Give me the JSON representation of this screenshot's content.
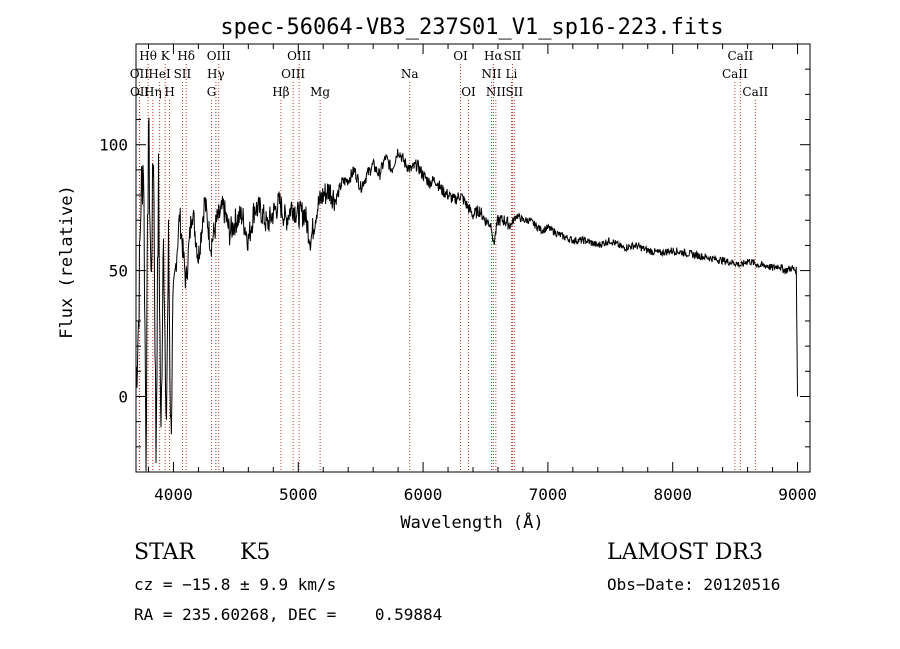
{
  "chart_data": {
    "type": "line",
    "title": "spec-56064-VB3_237S01_V1_sp16-223.fits",
    "xlabel": "Wavelength (Å)",
    "ylabel": "Flux (relative)",
    "xlim": [
      3700,
      9100
    ],
    "ylim": [
      -30,
      140
    ],
    "xticks": [
      4000,
      5000,
      6000,
      7000,
      8000,
      9000
    ],
    "yticks": [
      0,
      50,
      100
    ],
    "xtick_labels": [
      "4000",
      "5000",
      "6000",
      "7000",
      "8000",
      "9000"
    ],
    "ytick_labels": [
      "0",
      "50",
      "100"
    ],
    "series": [
      {
        "name": "flux",
        "x": [
          3700,
          3720,
          3740,
          3760,
          3780,
          3800,
          3820,
          3840,
          3860,
          3880,
          3900,
          3920,
          3940,
          3960,
          3980,
          4000,
          4050,
          4100,
          4150,
          4200,
          4250,
          4300,
          4350,
          4400,
          4450,
          4500,
          4550,
          4600,
          4650,
          4700,
          4750,
          4800,
          4850,
          4900,
          4950,
          5000,
          5050,
          5100,
          5150,
          5200,
          5250,
          5300,
          5350,
          5400,
          5450,
          5500,
          5550,
          5600,
          5650,
          5700,
          5750,
          5800,
          5850,
          5900,
          5950,
          6000,
          6050,
          6100,
          6150,
          6200,
          6250,
          6300,
          6350,
          6400,
          6450,
          6500,
          6550,
          6563,
          6600,
          6650,
          6700,
          6750,
          6800,
          6850,
          6900,
          6950,
          7000,
          7100,
          7200,
          7300,
          7400,
          7500,
          7600,
          7700,
          7800,
          7900,
          8000,
          8100,
          8200,
          8300,
          8400,
          8500,
          8550,
          8600,
          8650,
          8700,
          8750,
          8800,
          8850,
          8900,
          8950,
          8990,
          9000
        ],
        "y": [
          5,
          30,
          80,
          95,
          -20,
          110,
          45,
          100,
          -22,
          85,
          -20,
          75,
          -20,
          60,
          -15,
          40,
          72,
          45,
          75,
          55,
          78,
          60,
          70,
          75,
          65,
          70,
          72,
          62,
          75,
          74,
          68,
          73,
          77,
          70,
          76,
          72,
          73,
          62,
          75,
          80,
          82,
          78,
          85,
          86,
          90,
          83,
          88,
          92,
          88,
          95,
          90,
          98,
          93,
          90,
          92,
          88,
          85,
          86,
          82,
          80,
          78,
          80,
          76,
          72,
          74,
          70,
          68,
          60,
          70,
          70,
          68,
          72,
          70,
          70,
          68,
          66,
          67,
          64,
          62,
          62,
          60,
          62,
          59,
          60,
          58,
          57,
          58,
          57,
          56,
          55,
          54,
          53,
          52,
          54,
          53,
          52,
          52,
          51,
          52,
          50,
          51,
          50,
          0
        ]
      }
    ],
    "lines": [
      {
        "label": "Hθ",
        "x": 3797,
        "row": 0
      },
      {
        "label": "K",
        "x": 3934,
        "row": 0
      },
      {
        "label": "Hδ",
        "x": 4102,
        "row": 0
      },
      {
        "label": "OIII",
        "x": 4363,
        "row": 0
      },
      {
        "label": "OIII",
        "x": 5007,
        "row": 0
      },
      {
        "label": "OI",
        "x": 6300,
        "row": 0
      },
      {
        "label": "Hα",
        "x": 6563,
        "row": 0
      },
      {
        "label": "SII",
        "x": 6716,
        "row": 0
      },
      {
        "label": "CaII",
        "x": 8542,
        "row": 0
      },
      {
        "label": "OII",
        "x": 3727,
        "row": 1
      },
      {
        "label": "HeI",
        "x": 3889,
        "row": 1
      },
      {
        "label": "SII",
        "x": 4072,
        "row": 1
      },
      {
        "label": "Hγ",
        "x": 4340,
        "row": 1
      },
      {
        "label": "OIII",
        "x": 4959,
        "row": 1
      },
      {
        "label": "Na",
        "x": 5893,
        "row": 1
      },
      {
        "label": "NII",
        "x": 6548,
        "row": 1
      },
      {
        "label": "Li",
        "x": 6708,
        "row": 1
      },
      {
        "label": "CaII",
        "x": 8498,
        "row": 1
      },
      {
        "label": "OII",
        "x": 3729,
        "row": 2
      },
      {
        "label": "Hη",
        "x": 3835,
        "row": 2
      },
      {
        "label": "H",
        "x": 3969,
        "row": 2
      },
      {
        "label": "G",
        "x": 4305,
        "row": 2
      },
      {
        "label": "Hβ",
        "x": 4861,
        "row": 2
      },
      {
        "label": "Mg",
        "x": 5175,
        "row": 2
      },
      {
        "label": "OI",
        "x": 6364,
        "row": 2
      },
      {
        "label": "NII",
        "x": 6583,
        "row": 2
      },
      {
        "label": "SII",
        "x": 6731,
        "row": 2
      },
      {
        "label": "CaII",
        "x": 8662,
        "row": 2
      }
    ]
  },
  "footer": {
    "object_class": "STAR",
    "subclass": "K5",
    "survey": "LAMOST DR3",
    "cz": "cz = −15.8 ± 9.9 km/s",
    "obs_date": "Obs−Date: 20120516",
    "coords": "RA = 235.60268, DEC =    0.59884"
  },
  "colors": {
    "line_marker": "#c0392b",
    "spectrum": "#000000",
    "axis": "#000000"
  }
}
